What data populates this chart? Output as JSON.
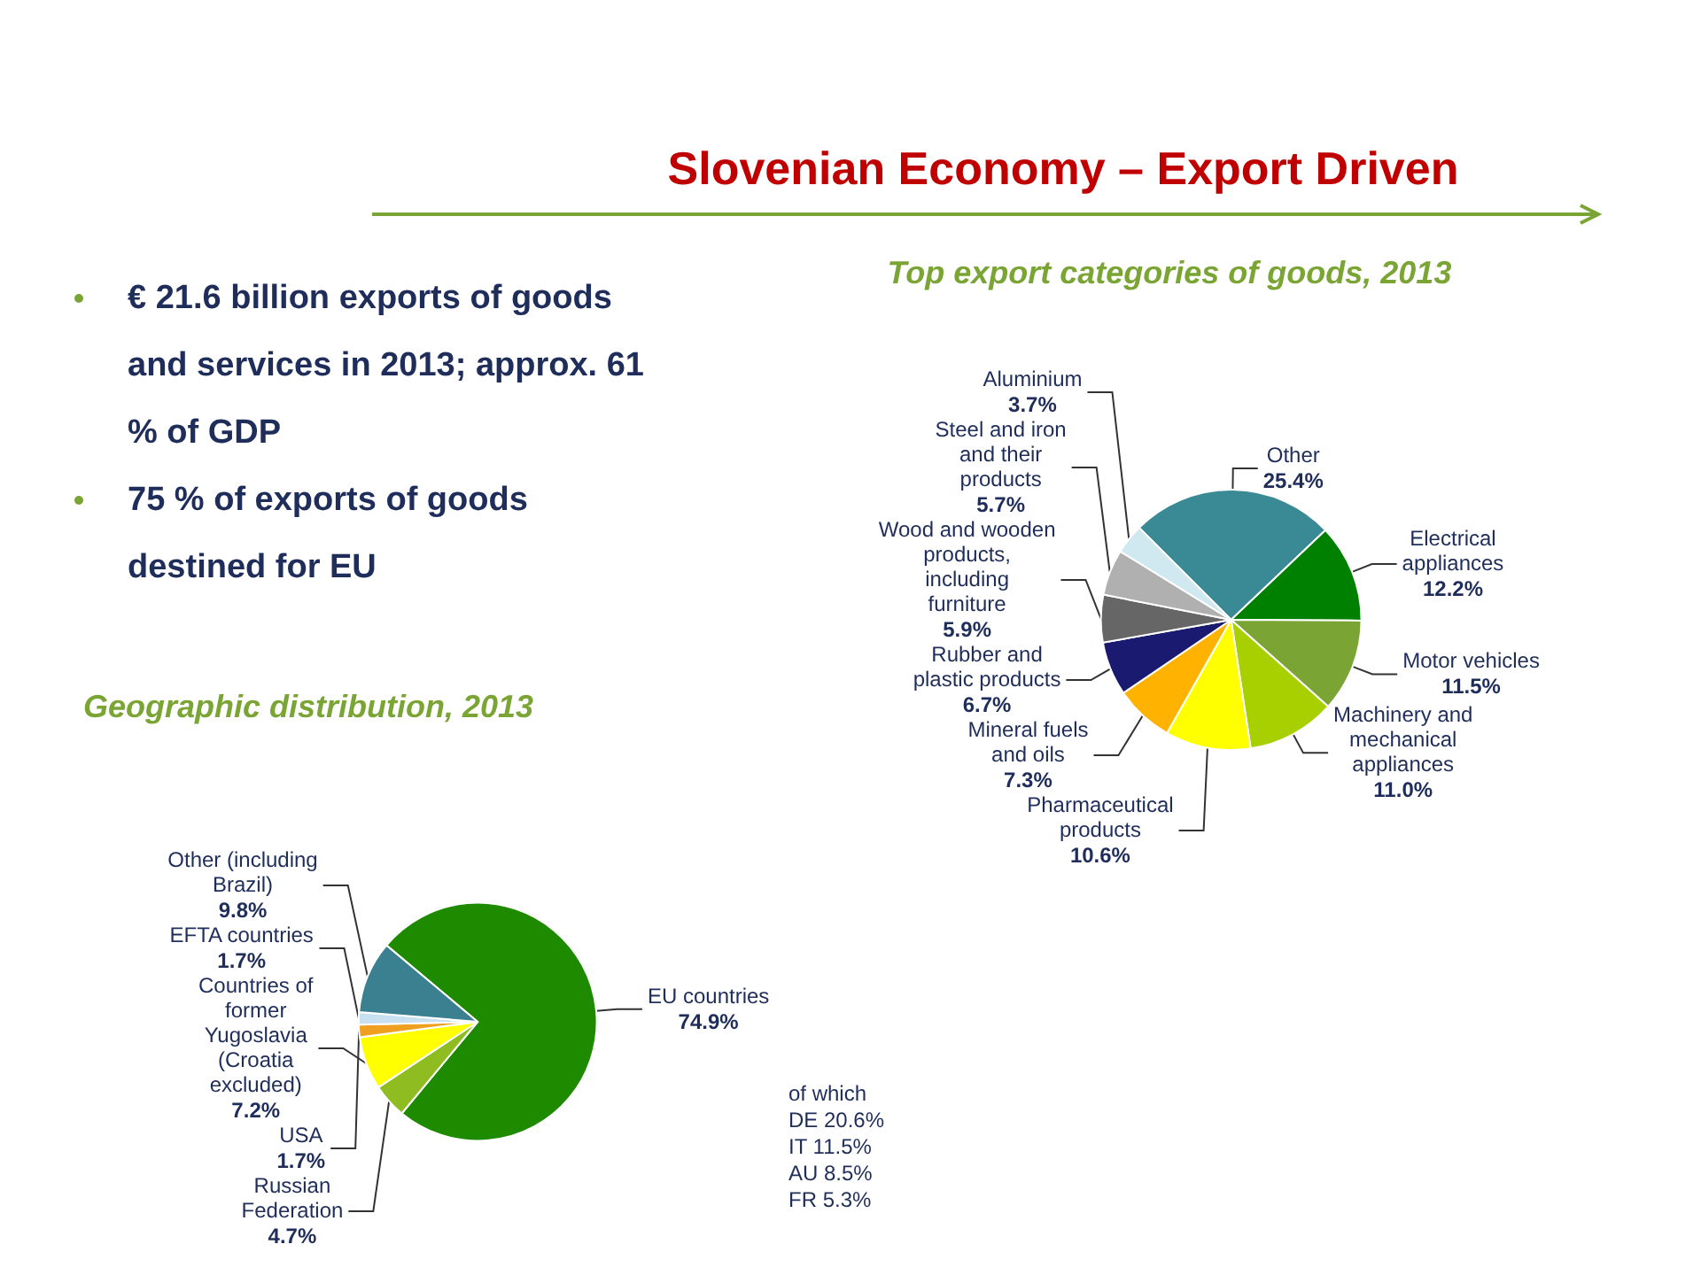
{
  "chart_data": [
    {
      "type": "other",
      "title": "Slovenian Economy – Export Driven",
      "annotations": [
        "€ 21.6 billion exports of goods and services in 2013; approx. 61 % of GDP",
        "75 % of exports of goods destined for EU"
      ]
    },
    {
      "type": "pie",
      "title": "Top export categories of goods, 2013",
      "categories": [
        "Other",
        "Electrical appliances",
        "Motor vehicles",
        "Machinery and mechanical appliances",
        "Pharmaceutical products",
        "Mineral fuels and oils",
        "Rubber and plastic products",
        "Wood and wooden products, including furniture",
        "Steel and iron and their products",
        "Aluminium"
      ],
      "values": [
        25.4,
        12.2,
        11.5,
        11.0,
        10.6,
        7.3,
        6.7,
        5.9,
        5.7,
        3.7
      ],
      "value_labels": [
        "25.4%",
        "12.2%",
        "11.5%",
        "11.0%",
        "10.6%",
        "7.3%",
        "6.7%",
        "5.9%",
        "5.7%",
        "3.7%"
      ],
      "colors": [
        "#3a8a96",
        "#008000",
        "#7aa535",
        "#a8d000",
        "#ffff00",
        "#ffb300",
        "#1a1a70",
        "#666666",
        "#b0b0b0",
        "#d0e8f0"
      ]
    },
    {
      "type": "pie",
      "title": "Geographic distribution, 2013",
      "categories": [
        "EU countries",
        "Russian Federation",
        "Countries of former Yugoslavia (Croatia excluded)",
        "USA",
        "EFTA countries",
        "Other (including Brazil)"
      ],
      "values": [
        74.9,
        4.7,
        7.2,
        1.7,
        1.7,
        9.8
      ],
      "value_labels": [
        "74.9%",
        "4.7%",
        "7.2%",
        "1.7%",
        "1.7%",
        "9.8%"
      ],
      "colors": [
        "#1e8a00",
        "#8fbc20",
        "#ffff00",
        "#f0a020",
        "#c8e0f0",
        "#3a8090"
      ],
      "annotations": [
        "of which DE 20.6% IT 11.5% AU 8.5% FR 5.3%"
      ]
    }
  ]
}
